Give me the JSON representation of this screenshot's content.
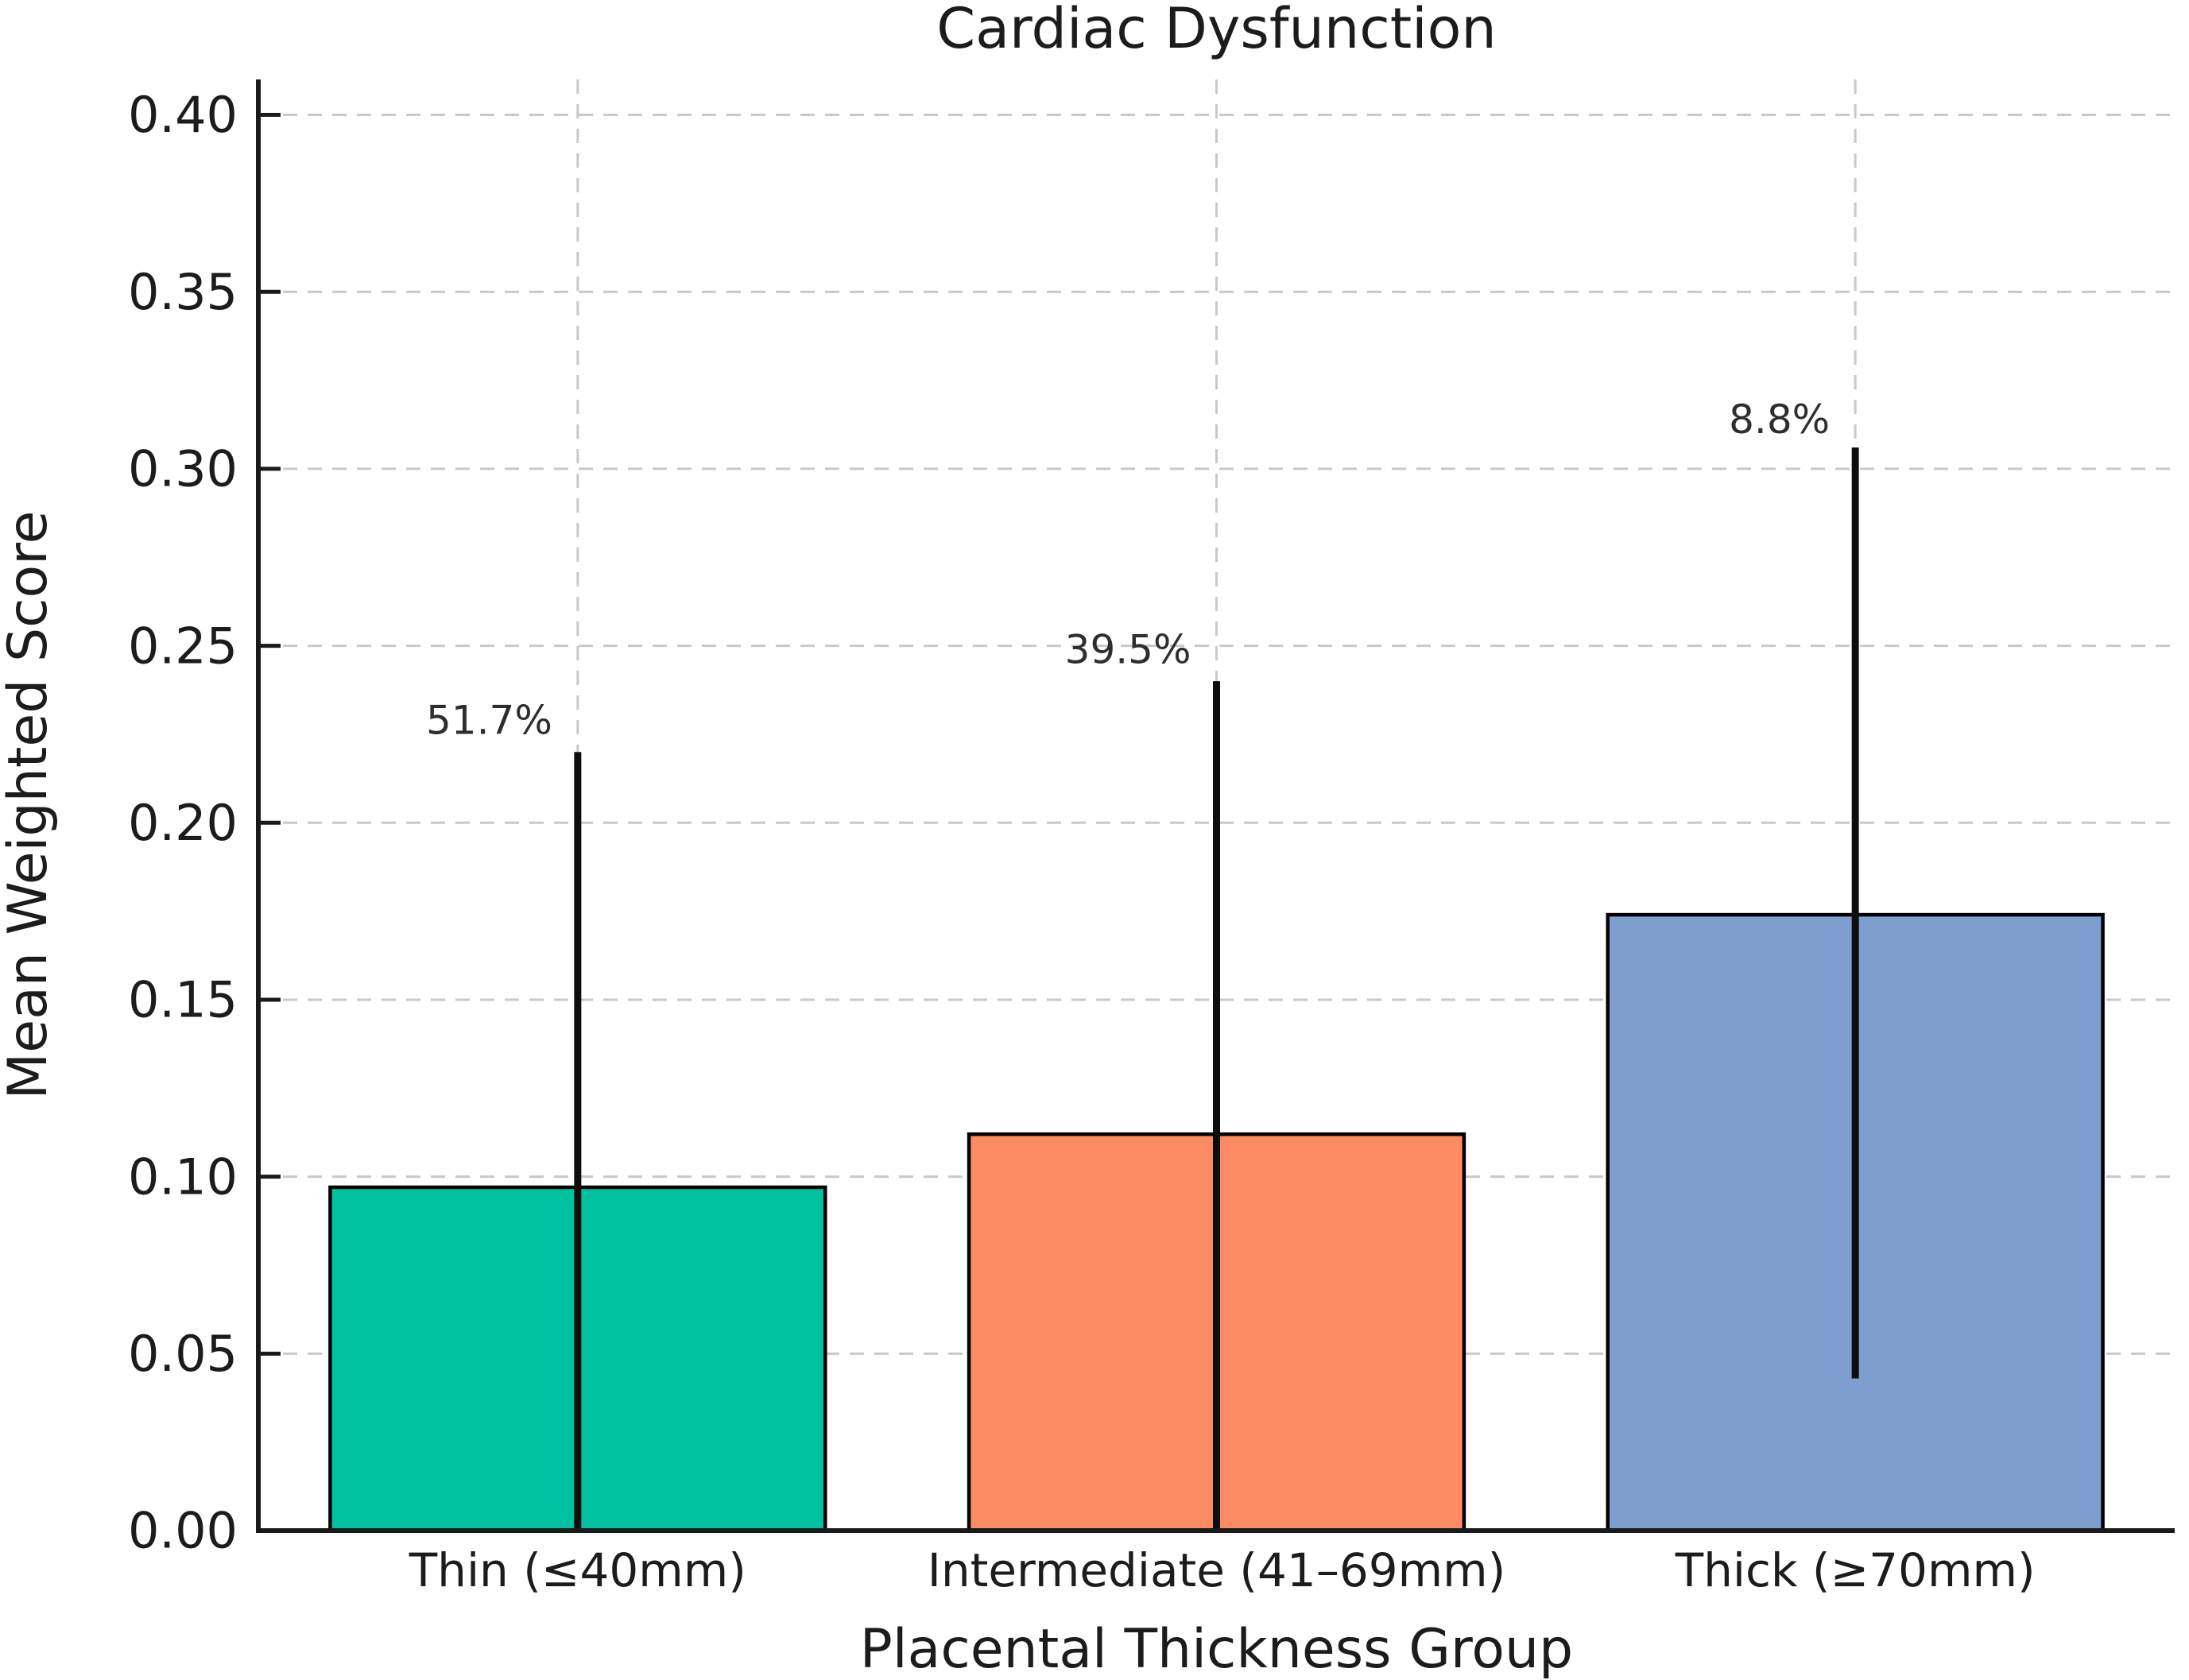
{
  "figure": {
    "title": "Cardiac Dysfunction"
  },
  "chart_data": {
    "type": "bar",
    "title": "Cardiac Dysfunction",
    "xlabel": "Placental Thickness Group",
    "ylabel": "Mean Weighted Score",
    "categories": [
      "Thin (≤40mm)",
      "Intermediate (41–69mm)",
      "Thick (≥70mm)"
    ],
    "series": [
      {
        "name": "Mean Weighted Score",
        "values": [
          0.097,
          0.112,
          0.174
        ]
      }
    ],
    "error_bars": [
      {
        "top": 0.22,
        "bottom": 0.0
      },
      {
        "top": 0.24,
        "bottom": 0.0
      },
      {
        "top": 0.306,
        "bottom": 0.043
      }
    ],
    "annotations": [
      {
        "text": "51.7%",
        "bar_index": 0,
        "y": 0.229
      },
      {
        "text": "39.5%",
        "bar_index": 1,
        "y": 0.249
      },
      {
        "text": "8.8%",
        "bar_index": 2,
        "y": 0.314
      }
    ],
    "bar_colors": [
      "#00c2a0",
      "#fc8a62",
      "#7e9ecf"
    ],
    "bar_edge_color": "#000000",
    "errorbar_color": "#0d0d0d",
    "grid_color": "#c9c9c9",
    "text_color": "#1c1c1c",
    "annotation_color": "#2e2e2e",
    "ylim": [
      0,
      0.41
    ],
    "yticks": [
      0,
      0.05,
      0.1,
      0.15,
      0.2,
      0.25,
      0.3,
      0.35,
      0.4
    ],
    "ytick_labels": [
      "0.00",
      "0.05",
      "0.10",
      "0.15",
      "0.20",
      "0.25",
      "0.30",
      "0.35",
      "0.40"
    ],
    "grid": {
      "horizontal": true,
      "vertical": true,
      "style": "dashed"
    },
    "legend_position": "none"
  }
}
